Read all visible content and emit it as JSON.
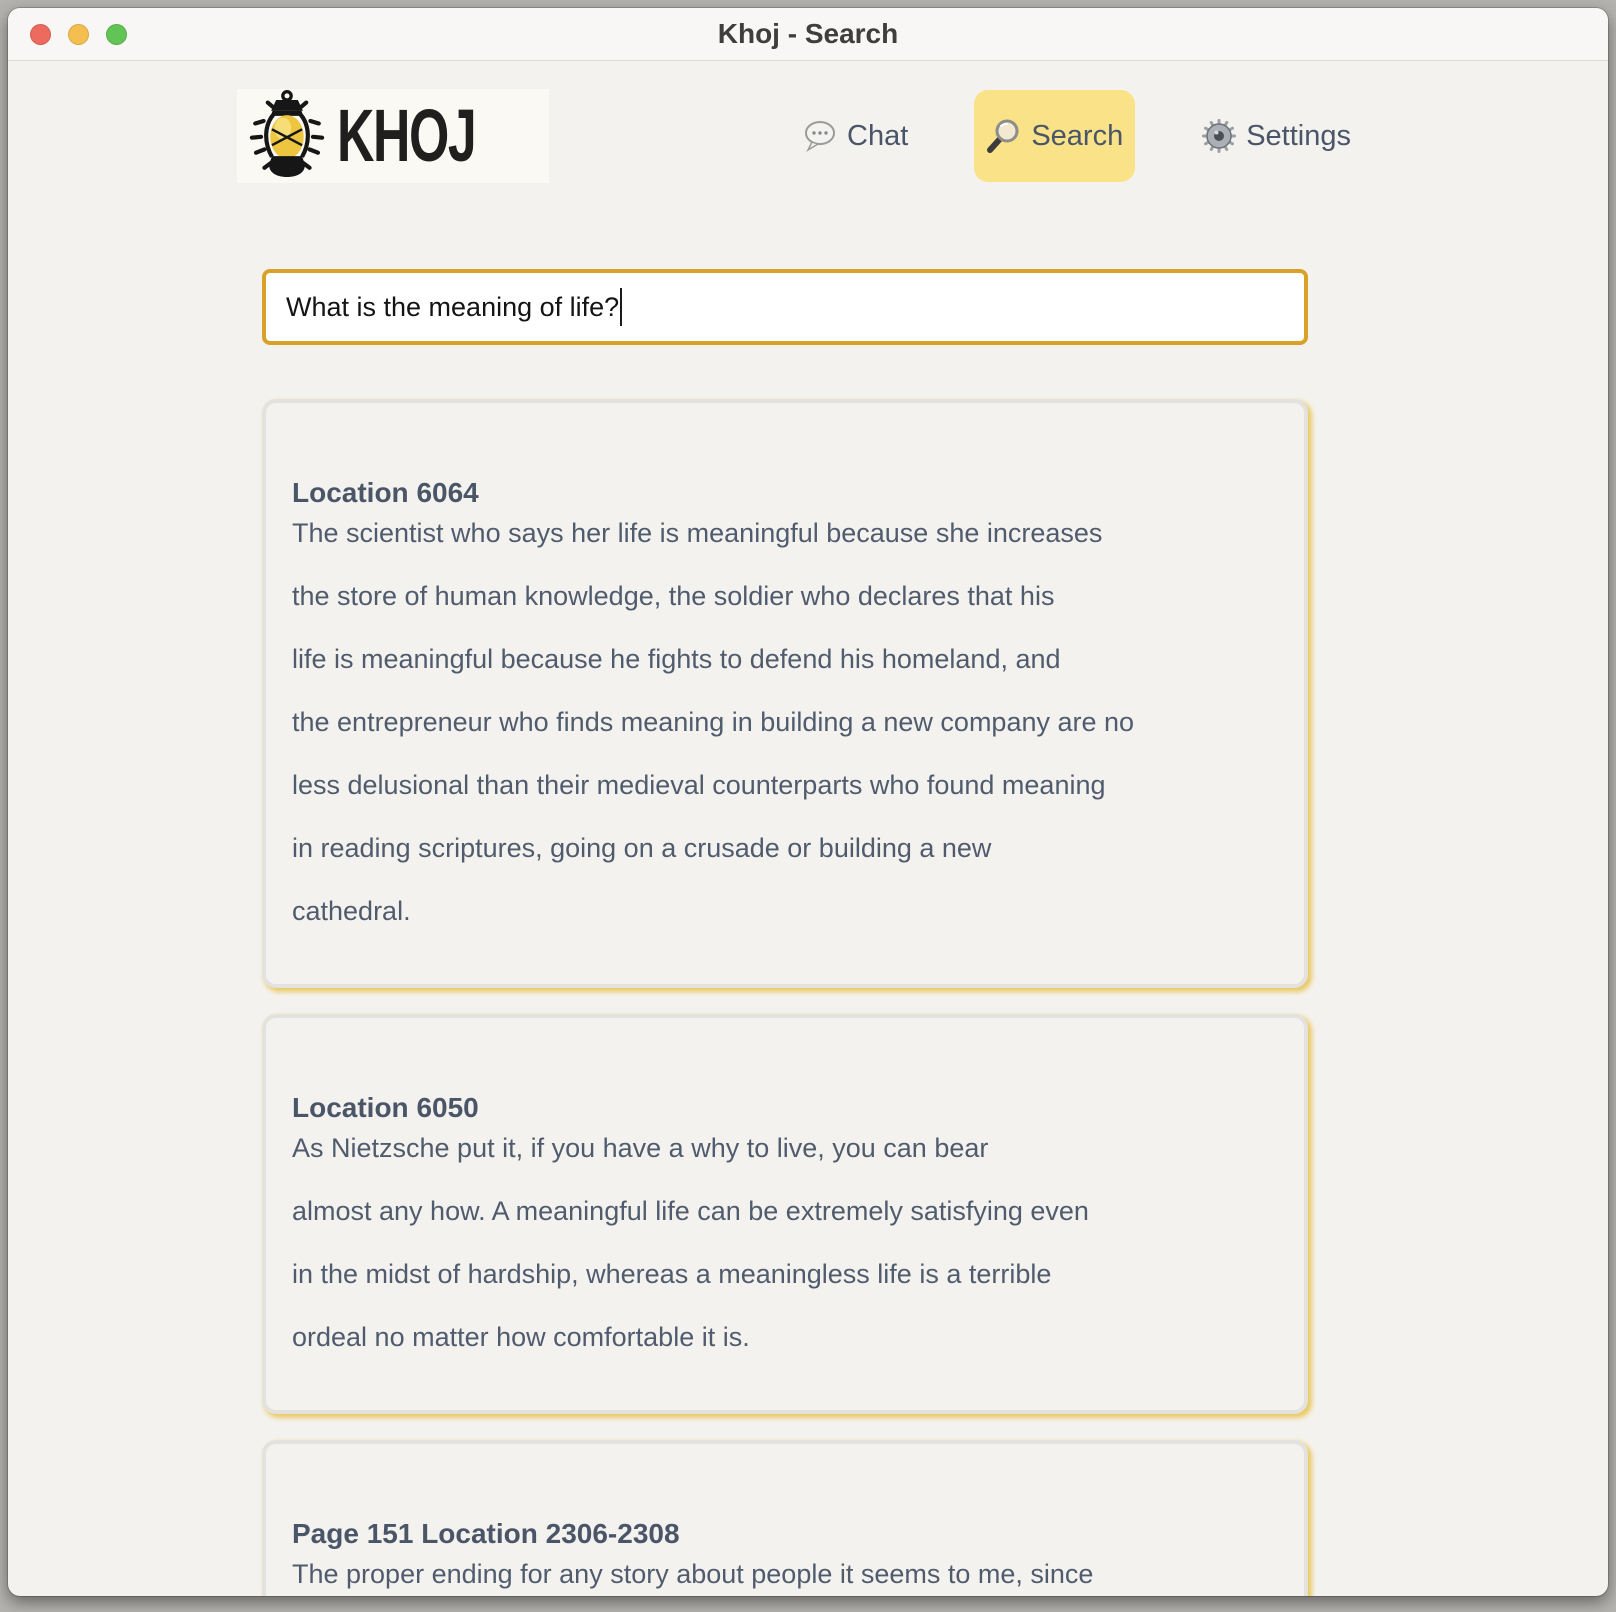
{
  "window": {
    "title": "Khoj - Search"
  },
  "titlebar_buttons": {
    "close": "close",
    "minimize": "minimize",
    "zoom": "zoom"
  },
  "header": {
    "brand": "KHOJ",
    "nav": [
      {
        "id": "chat",
        "label": "Chat",
        "icon": "chat-bubble-icon",
        "active": false
      },
      {
        "id": "search",
        "label": "Search",
        "icon": "magnifier-icon",
        "active": true
      },
      {
        "id": "settings",
        "label": "Settings",
        "icon": "gear-icon",
        "active": false
      }
    ]
  },
  "search": {
    "value": "What is the meaning of life?"
  },
  "results": [
    {
      "heading": "Location 6064",
      "lines": [
        "The scientist who says her life is meaningful because she increases",
        "the store of human knowledge, the soldier who declares that his",
        "life is meaningful because he fights to defend his homeland, and",
        "the entrepreneur who finds meaning in building a new company are no",
        "less delusional than their medieval counterparts who found meaning",
        "in reading scriptures, going on a crusade or building a new",
        "cathedral."
      ]
    },
    {
      "heading": "Location 6050",
      "lines": [
        "As Nietzsche put it, if you have a why to live, you can bear",
        "almost any how. A meaningful life can be extremely satisfying even",
        "in the midst of hardship, whereas a meaningless life is a terrible",
        "ordeal no matter how comfortable it is."
      ]
    },
    {
      "heading": "Page 151 Location 2306-2308",
      "lines": [
        "The proper ending for any story about people it seems to me, since"
      ]
    }
  ],
  "colors": {
    "accent_yellow": "#f9e287",
    "input_border_gold": "#d9a127",
    "card_shadow_gold": "#e7bd3a",
    "text_slate": "#4a5568",
    "traffic_red": "#ed6a5e",
    "traffic_yellow": "#f5bf4f",
    "traffic_green": "#61c454"
  }
}
